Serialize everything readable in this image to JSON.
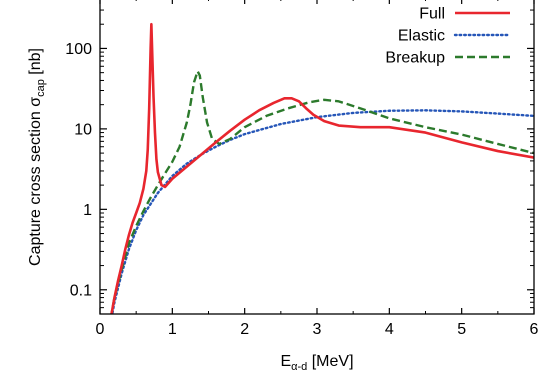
{
  "chart_data": {
    "type": "line",
    "title": "",
    "xlabel": {
      "main": "E",
      "sub": "α-d",
      "unit": " [MeV]"
    },
    "ylabel": {
      "main": "Capture cross section σ",
      "sub": "cap",
      "unit": " [nb]"
    },
    "xlim": [
      0,
      6
    ],
    "ylim": [
      0.05,
      400
    ],
    "yscale": "log",
    "grid": false,
    "legend": "top-right",
    "x_ticks": [
      {
        "value": 0,
        "label": "0"
      },
      {
        "value": 1,
        "label": "1"
      },
      {
        "value": 2,
        "label": "2"
      },
      {
        "value": 3,
        "label": "3"
      },
      {
        "value": 4,
        "label": "4"
      },
      {
        "value": 5,
        "label": "5"
      },
      {
        "value": 6,
        "label": "6"
      }
    ],
    "y_ticks": [
      {
        "value": 0.1,
        "label": "0.1"
      },
      {
        "value": 1,
        "label": "1"
      },
      {
        "value": 10,
        "label": "10"
      },
      {
        "value": 100,
        "label": "100"
      }
    ],
    "series": [
      {
        "name": "Full",
        "color": "#e8262e",
        "dash": "solid",
        "x": [
          0.15,
          0.2,
          0.25,
          0.3,
          0.35,
          0.4,
          0.45,
          0.5,
          0.55,
          0.6,
          0.64,
          0.66,
          0.68,
          0.7,
          0.71,
          0.72,
          0.74,
          0.76,
          0.78,
          0.8,
          0.85,
          0.9,
          1.0,
          1.2,
          1.4,
          1.6,
          1.8,
          2.0,
          2.2,
          2.4,
          2.55,
          2.65,
          2.75,
          2.85,
          2.95,
          3.1,
          3.3,
          3.6,
          4.0,
          4.5,
          5.0,
          5.5,
          6.0
        ],
        "y": [
          0.045,
          0.08,
          0.13,
          0.2,
          0.32,
          0.48,
          0.68,
          0.9,
          1.2,
          1.8,
          3.0,
          5.5,
          18,
          100,
          200,
          100,
          25,
          9,
          4.2,
          2.9,
          2.0,
          1.9,
          2.4,
          3.4,
          4.8,
          6.8,
          9.5,
          13,
          17,
          21,
          24,
          24,
          22,
          18,
          15,
          12.5,
          11,
          10.5,
          10.5,
          9,
          6.8,
          5.3,
          4.4
        ]
      },
      {
        "name": "Elastic",
        "color": "#2656b8",
        "dash": "dotted",
        "x": [
          0.15,
          0.2,
          0.3,
          0.4,
          0.5,
          0.6,
          0.8,
          1.0,
          1.2,
          1.4,
          1.6,
          1.8,
          2.0,
          2.5,
          3.0,
          3.5,
          4.0,
          4.5,
          5.0,
          5.5,
          6.0
        ],
        "y": [
          0.04,
          0.07,
          0.16,
          0.32,
          0.55,
          0.85,
          1.6,
          2.6,
          3.7,
          4.8,
          6.0,
          7.3,
          8.6,
          11.5,
          14.0,
          15.8,
          16.8,
          17.0,
          16.5,
          15.5,
          14.5
        ]
      },
      {
        "name": "Breakup",
        "color": "#2c7a2c",
        "dash": "dashed",
        "x": [
          0.15,
          0.2,
          0.3,
          0.4,
          0.5,
          0.6,
          0.7,
          0.8,
          0.9,
          1.0,
          1.1,
          1.2,
          1.25,
          1.3,
          1.35,
          1.38,
          1.42,
          1.48,
          1.55,
          1.65,
          1.8,
          2.0,
          2.3,
          2.6,
          2.9,
          3.1,
          3.3,
          3.6,
          4.0,
          4.5,
          5.0,
          5.5,
          6.0
        ],
        "y": [
          0.045,
          0.08,
          0.18,
          0.38,
          0.62,
          0.95,
          1.4,
          2.0,
          2.8,
          3.9,
          6.0,
          12,
          20,
          38,
          52,
          46,
          25,
          12,
          7.5,
          6.5,
          7.5,
          10.5,
          14.5,
          18,
          21.5,
          23,
          22,
          18,
          13.5,
          10.5,
          8.5,
          6.5,
          5.0
        ]
      }
    ]
  }
}
